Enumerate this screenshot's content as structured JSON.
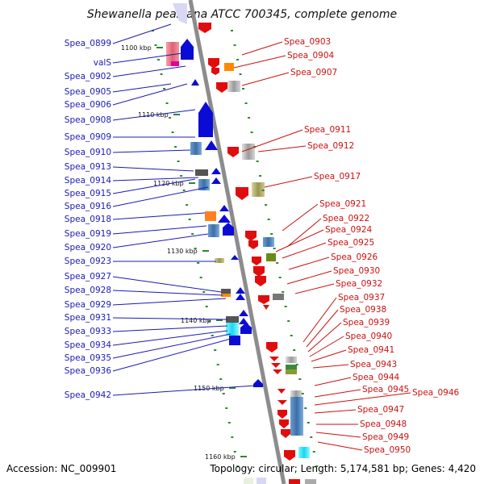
{
  "title": "Shewanella pealeana ATCC 700345, complete genome",
  "footer": {
    "accession": "Accession: NC_009901",
    "topology": "Topology: circular; Length: 5,174,581 bp; Genes: 4,420"
  },
  "scale_labels": [
    "1100 kbp",
    "1110 kbp",
    "1120 kbp",
    "1130 kbp",
    "1140 kbp",
    "1150 kbp",
    "1160 kbp"
  ],
  "left_genes": [
    "Spea_0899",
    "valS",
    "Spea_0902",
    "Spea_0905",
    "Spea_0906",
    "Spea_0908",
    "Spea_0909",
    "Spea_0910",
    "Spea_0913",
    "Spea_0914",
    "Spea_0915",
    "Spea_0916",
    "Spea_0918",
    "Spea_0919",
    "Spea_0920",
    "Spea_0923",
    "Spea_0927",
    "Spea_0928",
    "Spea_0929",
    "Spea_0931",
    "Spea_0933",
    "Spea_0934",
    "Spea_0935",
    "Spea_0936",
    "Spea_0942"
  ],
  "right_genes": [
    "Spea_0903",
    "Spea_0904",
    "Spea_0907",
    "Spea_0911",
    "Spea_0912",
    "Spea_0917",
    "Spea_0921",
    "Spea_0922",
    "Spea_0924",
    "Spea_0925",
    "Spea_0926",
    "Spea_0930",
    "Spea_0932",
    "Spea_0937",
    "Spea_0938",
    "Spea_0939",
    "Spea_0940",
    "Spea_0941",
    "Spea_0943",
    "Spea_0944",
    "Spea_0945",
    "Spea_0946",
    "Spea_0947",
    "Spea_0948",
    "Spea_0949",
    "Spea_0950"
  ],
  "colors": {
    "forward_strand": "#0b0bd6",
    "reverse_strand": "#e00d0d",
    "backbone": "#8c8c8c",
    "left_label": "#1a1ab4",
    "right_label": "#cc1111",
    "tick": "#2a8a2a"
  }
}
